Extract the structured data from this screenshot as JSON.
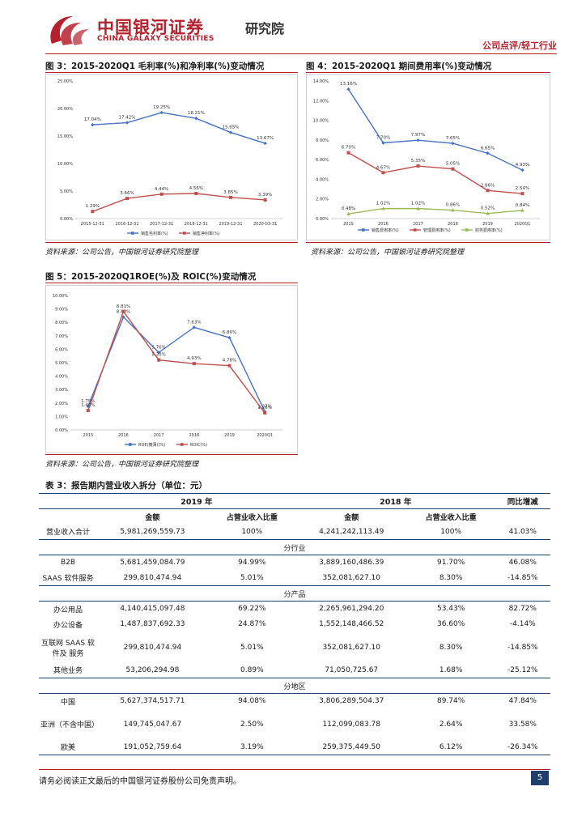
{
  "header": {
    "logo_cn": "中国银河证券",
    "logo_en": "CHINA GALAXY SECURITIES",
    "institute": "研究院",
    "category": "公司点评/轻工行业"
  },
  "figures": {
    "fig3": {
      "title": "图 3：2015-2020Q1 毛利率(%)和净利率(%)变动情况",
      "source": "资料来源：公司公告，中国银河证券研究院整理"
    },
    "fig4": {
      "title": "图 4：2015-2020Q1 期间费用率(%)变动情况",
      "source": "资料来源：公司公告，中国银河证券研究院整理"
    },
    "fig5": {
      "title": "图 5：2015-2020Q1ROE(%)及 ROIC(%)变动情况",
      "source": "资料来源：公司公告，中国银河证券研究院整理"
    }
  },
  "chart_data": [
    {
      "id": "fig3",
      "type": "line",
      "x": [
        "2015-12-31",
        "2016-12-31",
        "2017-12-31",
        "2018-12-31",
        "2019-12-31",
        "2020-03-31"
      ],
      "ylim": [
        0,
        25
      ],
      "yticks": [
        "0.00%",
        "5.00%",
        "10.00%",
        "15.00%",
        "20.00%",
        "25.00%"
      ],
      "series": [
        {
          "name": "销售毛利率(%)",
          "color": "#4472c4",
          "values": [
            17.04,
            17.42,
            19.25,
            18.21,
            15.65,
            13.67
          ],
          "labels": [
            "17.04%",
            "17.42%",
            "19.25%",
            "18.21%",
            "15.65%",
            "13.67%"
          ]
        },
        {
          "name": "销售净利率(%)",
          "color": "#c0504d",
          "values": [
            1.29,
            3.66,
            4.44,
            4.56,
            3.85,
            3.39
          ],
          "labels": [
            "1.29%",
            "3.66%",
            "4.44%",
            "4.56%",
            "3.85%",
            "3.39%"
          ]
        }
      ]
    },
    {
      "id": "fig4",
      "type": "line",
      "x": [
        "2015",
        "2016",
        "2017",
        "2018",
        "2019",
        "2020Q1"
      ],
      "ylim": [
        0,
        14
      ],
      "yticks": [
        "0.00%",
        "2.00%",
        "4.00%",
        "6.00%",
        "8.00%",
        "10.00%",
        "12.00%",
        "14.00%"
      ],
      "series": [
        {
          "name": "销售费用率(%)",
          "color": "#4472c4",
          "values": [
            13.16,
            7.7,
            7.97,
            7.65,
            6.65,
            4.93
          ],
          "labels": [
            "13.16%",
            "7.70%",
            "7.97%",
            "7.65%",
            "6.65%",
            "4.93%"
          ]
        },
        {
          "name": "管理费用率(%)",
          "color": "#c0504d",
          "values": [
            6.7,
            4.67,
            5.35,
            5.05,
            2.86,
            2.54
          ],
          "labels": [
            "6.70%",
            "4.67%",
            "5.35%",
            "5.05%",
            "2.86%",
            "2.54%"
          ]
        },
        {
          "name": "财务费用率(%)",
          "color": "#9bbb59",
          "values": [
            0.48,
            1.02,
            1.02,
            0.86,
            0.52,
            0.84
          ],
          "labels": [
            "0.48%",
            "1.02%",
            "1.02%",
            "0.86%",
            "0.52%",
            "0.84%"
          ]
        }
      ]
    },
    {
      "id": "fig5",
      "type": "line",
      "x": [
        "2015",
        "2016",
        "2017",
        "2018",
        "2019",
        "2020Q1"
      ],
      "ylim": [
        0,
        10
      ],
      "yticks": [
        "0.00%",
        "1.00%",
        "2.00%",
        "3.00%",
        "4.00%",
        "5.00%",
        "6.00%",
        "7.00%",
        "8.00%",
        "9.00%",
        "10.00%"
      ],
      "series": [
        {
          "name": "ROE(摊薄)(%)",
          "color": "#4472c4",
          "values": [
            1.75,
            8.4,
            5.76,
            7.63,
            6.86,
            1.37
          ],
          "labels": [
            "1.75%",
            "8.40%",
            "5.76%",
            "7.63%",
            "6.86%",
            "1.37%"
          ]
        },
        {
          "name": "ROIC(%)",
          "color": "#c0504d",
          "values": [
            1.44,
            8.81,
            5.2,
            4.93,
            4.78,
            1.26
          ],
          "labels": [
            "1.44%",
            "8.81%",
            "5.20%",
            "4.93%",
            "4.78%",
            "1.26%"
          ]
        }
      ]
    }
  ],
  "table": {
    "title": "表 3：报告期内营业收入拆分（单位：元）",
    "year_2019": "2019 年",
    "year_2018": "2018 年",
    "yoy": "同比增减",
    "col_amount": "金额",
    "col_ratio": "占营业收入比重",
    "total": {
      "label": "营业收入合计",
      "a2019": "5,981,269,559.73",
      "r2019": "100%",
      "a2018": "4,241,242,113.49",
      "r2018": "100%",
      "yoy": "41.03%"
    },
    "sections": [
      {
        "name": "分行业",
        "rows": [
          {
            "label": "B2B",
            "a2019": "5,681,459,084.79",
            "r2019": "94.99%",
            "a2018": "3,889,160,486.39",
            "r2018": "91.70%",
            "yoy": "46.08%"
          },
          {
            "label": "SAAS 软件服务",
            "a2019": "299,810,474.94",
            "r2019": "5.01%",
            "a2018": "352,081,627.10",
            "r2018": "8.30%",
            "yoy": "-14.85%"
          }
        ]
      },
      {
        "name": "分产品",
        "rows": [
          {
            "label": "办公用品",
            "a2019": "4,140,415,097.48",
            "r2019": "69.22%",
            "a2018": "2,265,961,294.20",
            "r2018": "53.43%",
            "yoy": "82.72%"
          },
          {
            "label": "办公设备",
            "a2019": "1,487,837,692.33",
            "r2019": "24.87%",
            "a2018": "1,552,148,466.52",
            "r2018": "36.60%",
            "yoy": "-4.14%"
          },
          {
            "label": "互联网 SAAS 软件及 服务",
            "a2019": "299,810,474.94",
            "r2019": "5.01%",
            "a2018": "352,081,627.10",
            "r2018": "8.30%",
            "yoy": "-14.85%"
          },
          {
            "label": "其他业务",
            "a2019": "53,206,294.98",
            "r2019": "0.89%",
            "a2018": "71,050,725.67",
            "r2018": "1.68%",
            "yoy": "-25.12%"
          }
        ]
      },
      {
        "name": "分地区",
        "rows": [
          {
            "label": "中国",
            "a2019": "5,627,374,517.71",
            "r2019": "94.08%",
            "a2018": "3,806,289,504.37",
            "r2018": "89.74%",
            "yoy": "47.84%"
          },
          {
            "label": "亚洲（不含中国）",
            "a2019": "149,745,047.67",
            "r2019": "2.50%",
            "a2018": "112,099,083.78",
            "r2018": "2.64%",
            "yoy": "33.58%"
          },
          {
            "label": "欧美",
            "a2019": "191,052,759.64",
            "r2019": "3.19%",
            "a2018": "259,375,449.50",
            "r2018": "6.12%",
            "yoy": "-26.34%"
          }
        ]
      }
    ]
  },
  "footer": {
    "disclaimer": "请务必阅读正文最后的中国银河证券股份公司免责声明。",
    "page": "5"
  }
}
